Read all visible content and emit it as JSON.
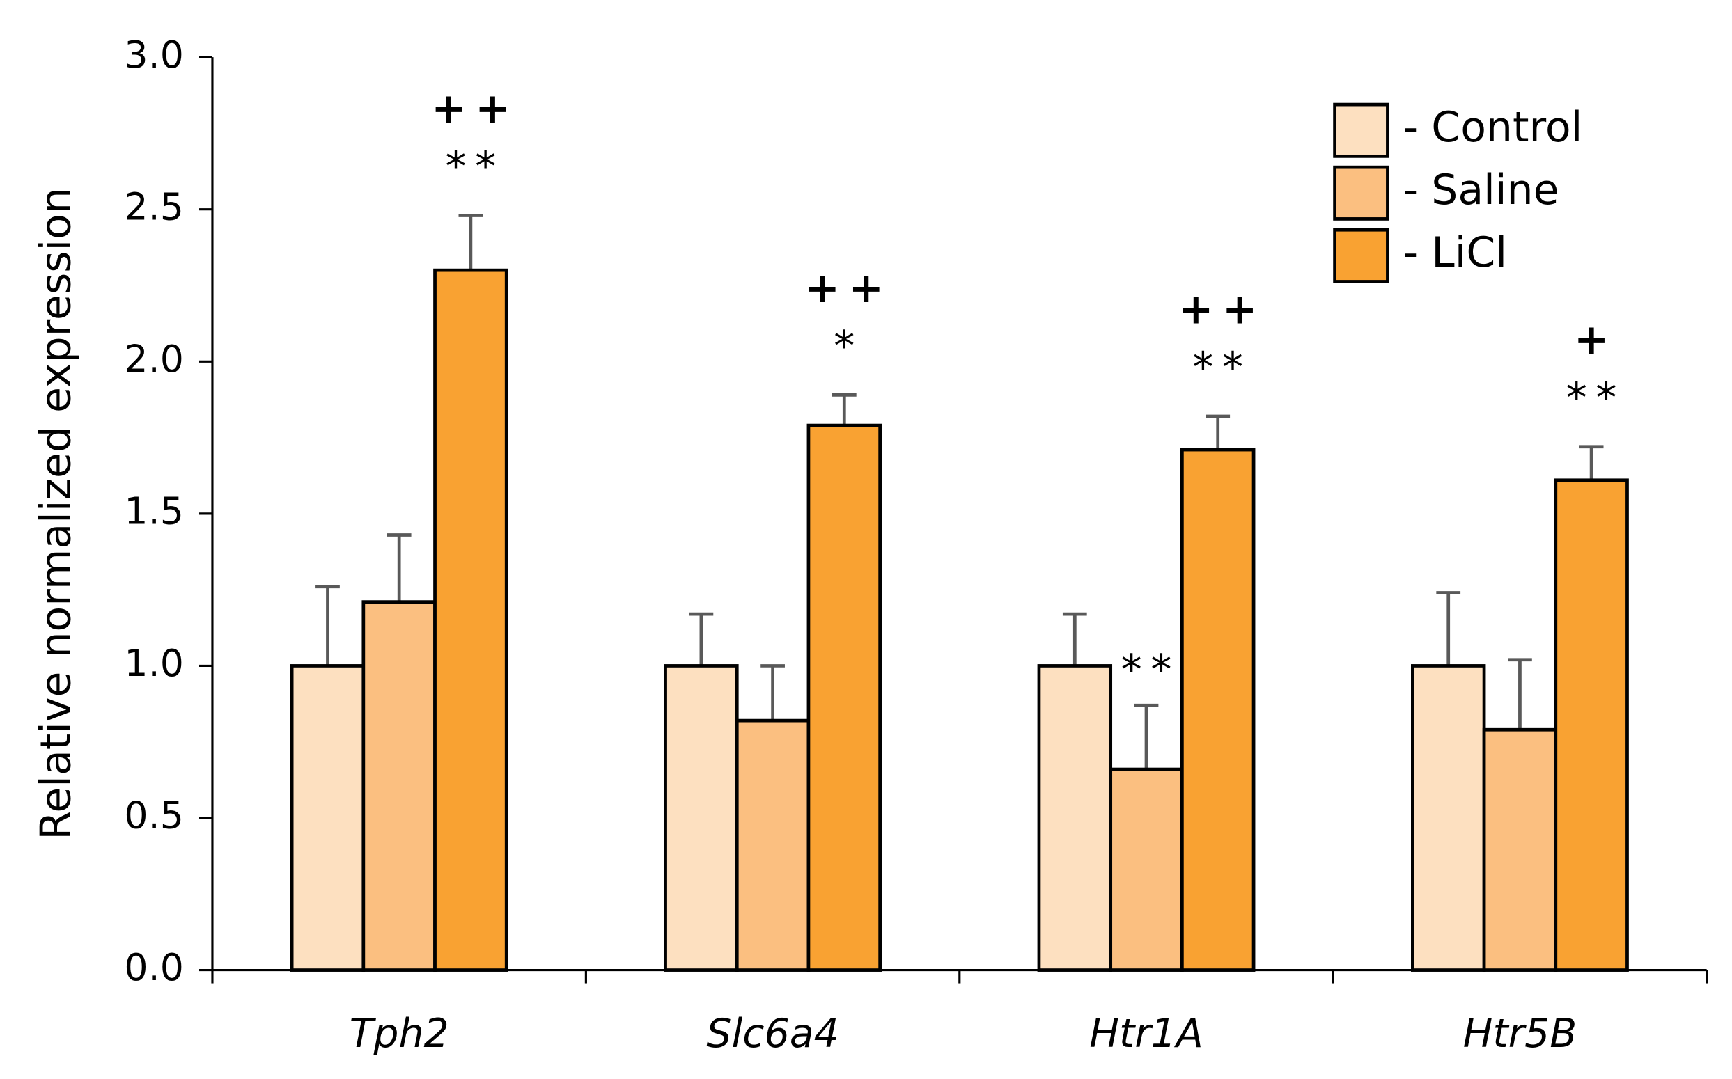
{
  "chart_data": {
    "type": "bar",
    "y_label": "Relative normalized expression",
    "categories": [
      "Tph2",
      "Slc6a4",
      "Htr1A",
      "Htr5B"
    ],
    "series": [
      {
        "name": "- Control",
        "color": "#fde0c0",
        "values": [
          1.0,
          1.0,
          1.0,
          1.0
        ],
        "errors": [
          0.26,
          0.17,
          0.17,
          0.24
        ],
        "star": [
          null,
          null,
          null,
          null
        ],
        "plus": [
          null,
          null,
          null,
          null
        ]
      },
      {
        "name": "- Saline",
        "color": "#fbbf80",
        "values": [
          1.21,
          0.82,
          0.66,
          0.79
        ],
        "errors": [
          0.22,
          0.18,
          0.21,
          0.23
        ],
        "star": [
          null,
          null,
          "**",
          null
        ],
        "plus": [
          null,
          null,
          null,
          null
        ]
      },
      {
        "name": "- LiCl",
        "color": "#f9a232",
        "values": [
          2.3,
          1.79,
          1.71,
          1.61
        ],
        "errors": [
          0.18,
          0.1,
          0.11,
          0.11
        ],
        "star": [
          "**",
          "*",
          "**",
          "**"
        ],
        "plus": [
          "++",
          "++",
          "++",
          "+"
        ]
      }
    ],
    "ylim": [
      0,
      3
    ],
    "yticks": [
      {
        "value": 0,
        "label": "0.0"
      },
      0.5,
      {
        "value": 1,
        "label": "1.0"
      },
      1.5,
      {
        "value": 2,
        "label": "2.0"
      },
      2.5,
      {
        "value": 3,
        "label": "3.0"
      }
    ],
    "legend": "top-right",
    "error_color": "#595959"
  }
}
